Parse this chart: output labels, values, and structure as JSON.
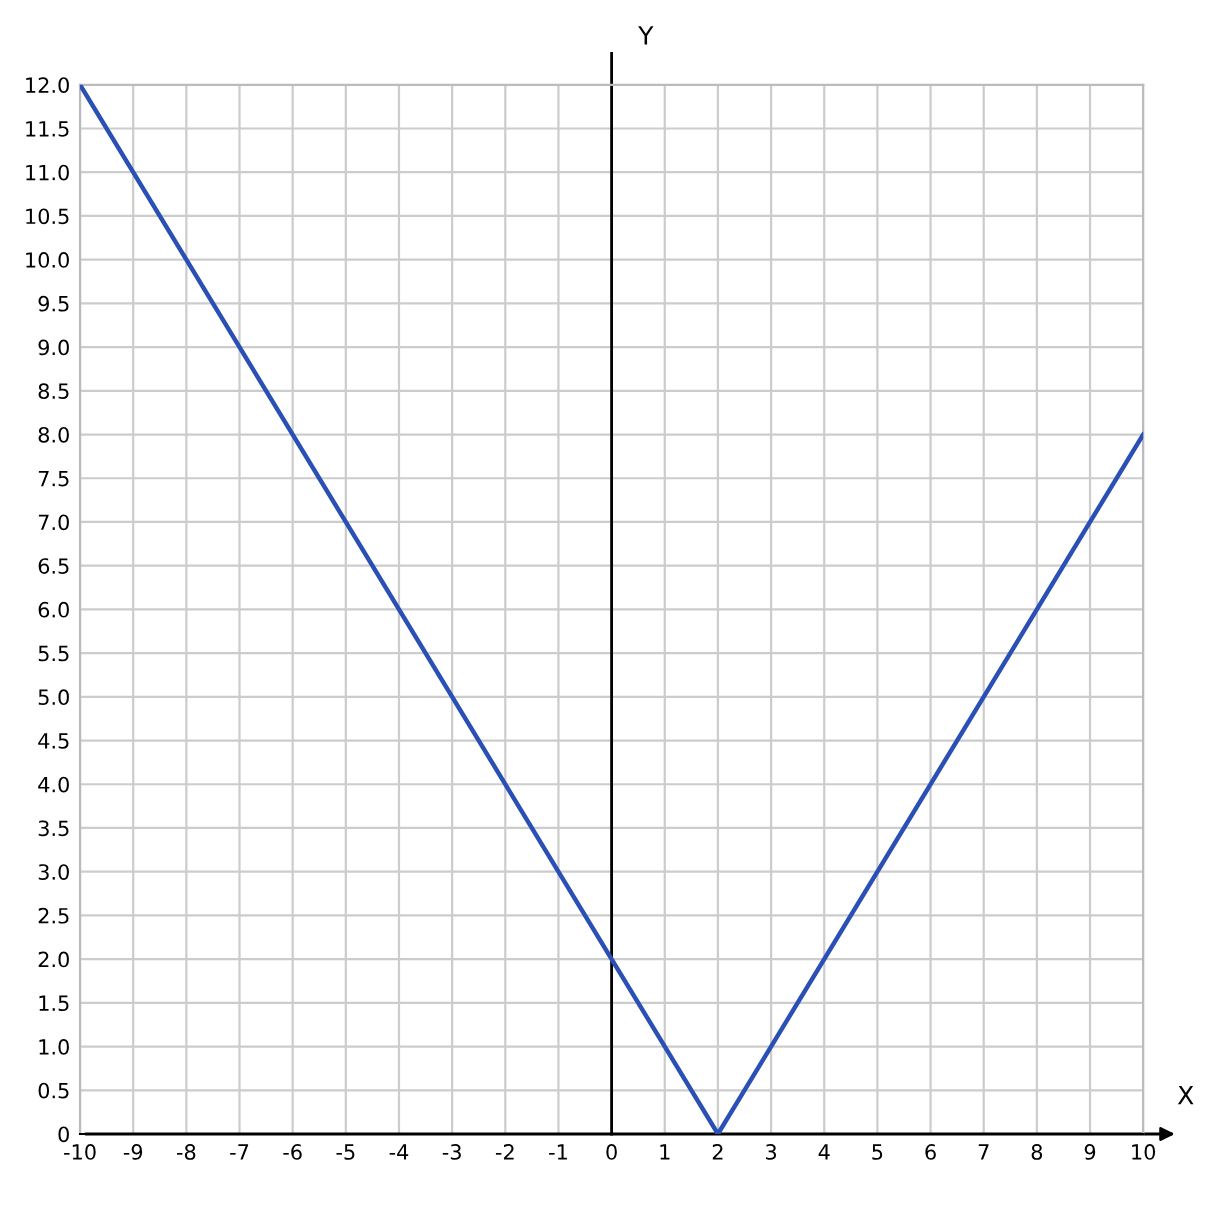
{
  "chart_data": {
    "type": "line",
    "xlabel": "X",
    "ylabel": "Y",
    "x": [
      -10,
      2,
      10
    ],
    "series": [
      {
        "color": "#2a4fb5",
        "values": [
          12,
          0,
          8
        ]
      }
    ],
    "xlim": [
      -10,
      10
    ],
    "ylim": [
      0,
      12
    ],
    "xticks": [
      -10,
      -9,
      -8,
      -7,
      -6,
      -5,
      -4,
      -3,
      -2,
      -1,
      0,
      1,
      2,
      3,
      4,
      5,
      6,
      7,
      8,
      9,
      10
    ],
    "yticks": [
      0,
      {
        "value": 0.5,
        "label": "0.5"
      },
      {
        "value": 1,
        "label": "1.0"
      },
      {
        "value": 1.5,
        "label": "1.5"
      },
      {
        "value": 2,
        "label": "2.0"
      },
      {
        "value": 2.5,
        "label": "2.5"
      },
      {
        "value": 3,
        "label": "3.0"
      },
      {
        "value": 3.5,
        "label": "3.5"
      },
      {
        "value": 4,
        "label": "4.0"
      },
      {
        "value": 4.5,
        "label": "4.5"
      },
      {
        "value": 5,
        "label": "5.0"
      },
      {
        "value": 5.5,
        "label": "5.5"
      },
      {
        "value": 6,
        "label": "6.0"
      },
      {
        "value": 6.5,
        "label": "6.5"
      },
      {
        "value": 7,
        "label": "7.0"
      },
      {
        "value": 7.5,
        "label": "7.5"
      },
      {
        "value": 8,
        "label": "8.0"
      },
      {
        "value": 8.5,
        "label": "8.5"
      },
      {
        "value": 9,
        "label": "9.0"
      },
      {
        "value": 9.5,
        "label": "9.5"
      },
      {
        "value": 10,
        "label": "10.0"
      },
      {
        "value": 10.5,
        "label": "10.5"
      },
      {
        "value": 11,
        "label": "11.0"
      },
      {
        "value": 11.5,
        "label": "11.5"
      },
      {
        "value": 12,
        "label": "12.0"
      }
    ],
    "grid": true,
    "marker": "none",
    "line_style": "solid"
  }
}
